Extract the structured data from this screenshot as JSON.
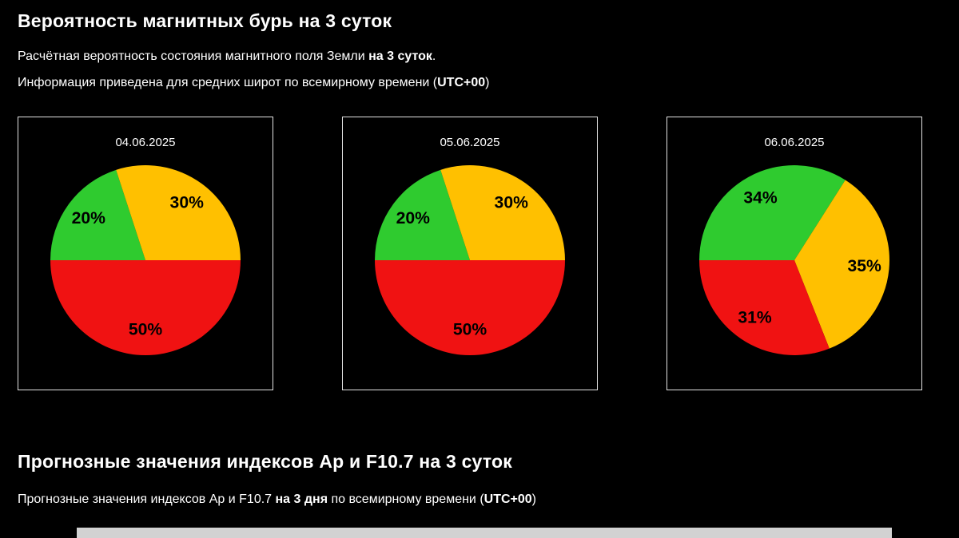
{
  "header": {
    "title": "Вероятность магнитных бурь на 3 суток",
    "line1": [
      {
        "text": "Расчётная вероятность состояния магнитного поля Земли ",
        "bold": false
      },
      {
        "text": "на 3 суток",
        "bold": true
      },
      {
        "text": ".",
        "bold": false
      }
    ],
    "line2": [
      {
        "text": "Информация приведена для средних широт по всемирному времени (",
        "bold": false
      },
      {
        "text": "UTC+00",
        "bold": true
      },
      {
        "text": ")",
        "bold": false
      }
    ]
  },
  "forecast": {
    "title": "Прогнозные значения индексов Ap и F10.7 на 3 суток",
    "line": [
      {
        "text": "Прогнозные значения индексов Ap и F10.7 ",
        "bold": false
      },
      {
        "text": "на 3 дня",
        "bold": true
      },
      {
        "text": " по всемирному времени (",
        "bold": false
      },
      {
        "text": "UTC+00",
        "bold": true
      },
      {
        "text": ")",
        "bold": false
      }
    ]
  },
  "palette": {
    "quiet_green": "#2fcb2f",
    "unsettled_yellow": "#ffc000",
    "storm_red": "#f01212",
    "label_color": "#000000",
    "card_border": "#e3e3e3",
    "background": "#000000"
  },
  "chart_data": [
    {
      "type": "pie",
      "title": "04.06.2025",
      "start_angle_deg": 180,
      "direction": "clockwise",
      "label_color": "#000000",
      "slices": [
        {
          "name": "green",
          "label": "20%",
          "value": 20,
          "color": "#2fcb2f"
        },
        {
          "name": "yellow",
          "label": "30%",
          "value": 30,
          "color": "#ffc000"
        },
        {
          "name": "red",
          "label": "50%",
          "value": 50,
          "color": "#f01212"
        }
      ]
    },
    {
      "type": "pie",
      "title": "05.06.2025",
      "start_angle_deg": 180,
      "direction": "clockwise",
      "label_color": "#000000",
      "slices": [
        {
          "name": "green",
          "label": "20%",
          "value": 20,
          "color": "#2fcb2f"
        },
        {
          "name": "yellow",
          "label": "30%",
          "value": 30,
          "color": "#ffc000"
        },
        {
          "name": "red",
          "label": "50%",
          "value": 50,
          "color": "#f01212"
        }
      ]
    },
    {
      "type": "pie",
      "title": "06.06.2025",
      "start_angle_deg": 180,
      "direction": "clockwise",
      "label_color": "#000000",
      "slices": [
        {
          "name": "green",
          "label": "34%",
          "value": 34,
          "color": "#2fcb2f"
        },
        {
          "name": "yellow",
          "label": "35%",
          "value": 35,
          "color": "#ffc000"
        },
        {
          "name": "red",
          "label": "31%",
          "value": 31,
          "color": "#f01212"
        }
      ]
    }
  ],
  "table_strip": {
    "visible": true
  }
}
